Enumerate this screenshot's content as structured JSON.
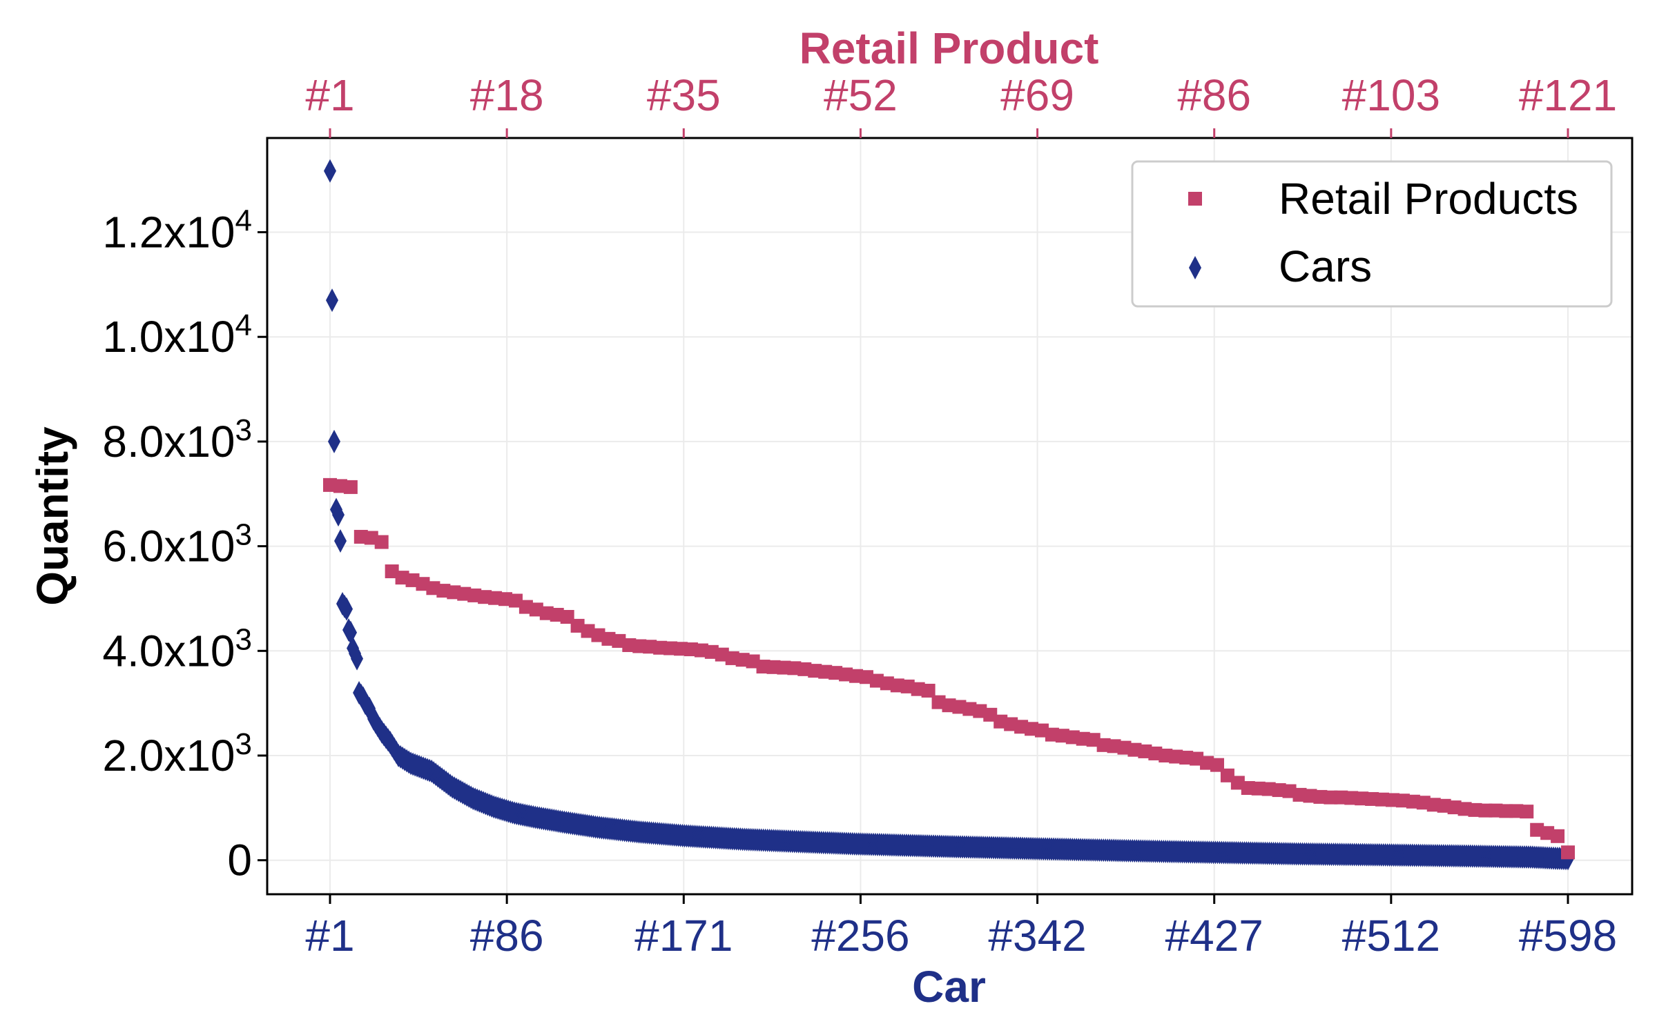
{
  "chart_data": {
    "type": "scatter",
    "x_label": "Car",
    "x2_label": "Retail Product",
    "ylabel": "Quantity",
    "grid": true,
    "legend_position": "top-right",
    "colors": {
      "retail": "#C2406A",
      "cars": "#1F3088",
      "axes": "#000000",
      "grid": "#EBEBEB"
    },
    "x_ticks": [
      "#1",
      "#86",
      "#171",
      "#256",
      "#342",
      "#427",
      "#512",
      "#598"
    ],
    "x2_ticks": [
      "#1",
      "#18",
      "#35",
      "#52",
      "#69",
      "#86",
      "#103",
      "#121"
    ],
    "y_ticks": [
      {
        "value": 0,
        "mantissa": "0",
        "exp": ""
      },
      {
        "value": 2000,
        "mantissa": "2.0x10",
        "exp": "3"
      },
      {
        "value": 4000,
        "mantissa": "4.0x10",
        "exp": "3"
      },
      {
        "value": 6000,
        "mantissa": "6.0x10",
        "exp": "3"
      },
      {
        "value": 8000,
        "mantissa": "8.0x10",
        "exp": "3"
      },
      {
        "value": 10000,
        "mantissa": "1.0x10",
        "exp": "4"
      },
      {
        "value": 12000,
        "mantissa": "1.2x10",
        "exp": "4"
      }
    ],
    "x_range": [
      1,
      598
    ],
    "x2_range": [
      1,
      121
    ],
    "ylim": [
      -650,
      13800
    ],
    "series": [
      {
        "name": "Retail Products",
        "marker": "square",
        "axis": "top",
        "x": [
          1,
          2,
          3,
          4,
          5,
          6,
          7,
          8,
          9,
          10,
          11,
          12,
          13,
          14,
          15,
          16,
          17,
          18,
          19,
          20,
          21,
          22,
          23,
          24,
          25,
          26,
          27,
          28,
          29,
          30,
          31,
          32,
          33,
          34,
          35,
          36,
          37,
          38,
          39,
          40,
          41,
          42,
          43,
          44,
          45,
          46,
          47,
          48,
          49,
          50,
          51,
          52,
          53,
          54,
          55,
          56,
          57,
          58,
          59,
          60,
          61,
          62,
          63,
          64,
          65,
          66,
          67,
          68,
          69,
          70,
          71,
          72,
          73,
          74,
          75,
          76,
          77,
          78,
          79,
          80,
          81,
          82,
          83,
          84,
          85,
          86,
          87,
          88,
          89,
          90,
          91,
          92,
          93,
          94,
          95,
          96,
          97,
          98,
          99,
          100,
          101,
          102,
          103,
          104,
          105,
          106,
          107,
          108,
          109,
          110,
          111,
          112,
          113,
          114,
          115,
          116,
          117,
          118,
          119,
          120,
          121
        ],
        "y": [
          7170,
          7150,
          7130,
          6180,
          6160,
          6080,
          5520,
          5400,
          5350,
          5280,
          5200,
          5150,
          5120,
          5090,
          5060,
          5030,
          5010,
          4990,
          4960,
          4840,
          4790,
          4720,
          4690,
          4650,
          4480,
          4380,
          4300,
          4230,
          4190,
          4110,
          4090,
          4080,
          4060,
          4050,
          4040,
          4030,
          4010,
          3980,
          3930,
          3860,
          3830,
          3800,
          3700,
          3690,
          3680,
          3670,
          3650,
          3620,
          3600,
          3580,
          3550,
          3520,
          3500,
          3430,
          3380,
          3340,
          3320,
          3270,
          3240,
          3020,
          2960,
          2930,
          2890,
          2850,
          2780,
          2650,
          2600,
          2550,
          2510,
          2480,
          2400,
          2380,
          2350,
          2320,
          2300,
          2200,
          2180,
          2150,
          2110,
          2080,
          2040,
          2000,
          1980,
          1960,
          1940,
          1860,
          1820,
          1620,
          1480,
          1380,
          1370,
          1360,
          1340,
          1320,
          1250,
          1230,
          1210,
          1200,
          1200,
          1190,
          1180,
          1170,
          1160,
          1150,
          1140,
          1120,
          1100,
          1060,
          1040,
          1010,
          980,
          960,
          950,
          950,
          940,
          940,
          930,
          580,
          520,
          460,
          150
        ]
      },
      {
        "name": "Cars",
        "marker": "diamond",
        "axis": "bottom",
        "rank_range": [
          1,
          598
        ],
        "anchors": [
          [
            1,
            13170
          ],
          [
            2,
            10700
          ],
          [
            3,
            8000
          ],
          [
            4,
            6700
          ],
          [
            5,
            6600
          ],
          [
            6,
            6100
          ],
          [
            7,
            4900
          ],
          [
            8,
            4850
          ],
          [
            9,
            4800
          ],
          [
            10,
            4400
          ],
          [
            11,
            4350
          ],
          [
            12,
            4050
          ],
          [
            13,
            3950
          ],
          [
            14,
            3850
          ],
          [
            15,
            3200
          ],
          [
            16,
            3150
          ],
          [
            17,
            3100
          ],
          [
            18,
            3000
          ],
          [
            20,
            2900
          ],
          [
            22,
            2700
          ],
          [
            26,
            2450
          ],
          [
            30,
            2250
          ],
          [
            34,
            2000
          ],
          [
            40,
            1850
          ],
          [
            50,
            1700
          ],
          [
            60,
            1400
          ],
          [
            70,
            1180
          ],
          [
            80,
            1020
          ],
          [
            90,
            900
          ],
          [
            100,
            820
          ],
          [
            115,
            720
          ],
          [
            130,
            630
          ],
          [
            150,
            540
          ],
          [
            171,
            470
          ],
          [
            200,
            400
          ],
          [
            230,
            350
          ],
          [
            256,
            310
          ],
          [
            300,
            260
          ],
          [
            342,
            220
          ],
          [
            400,
            170
          ],
          [
            427,
            150
          ],
          [
            470,
            120
          ],
          [
            512,
            100
          ],
          [
            550,
            80
          ],
          [
            580,
            60
          ],
          [
            590,
            40
          ],
          [
            598,
            30
          ]
        ]
      }
    ]
  }
}
